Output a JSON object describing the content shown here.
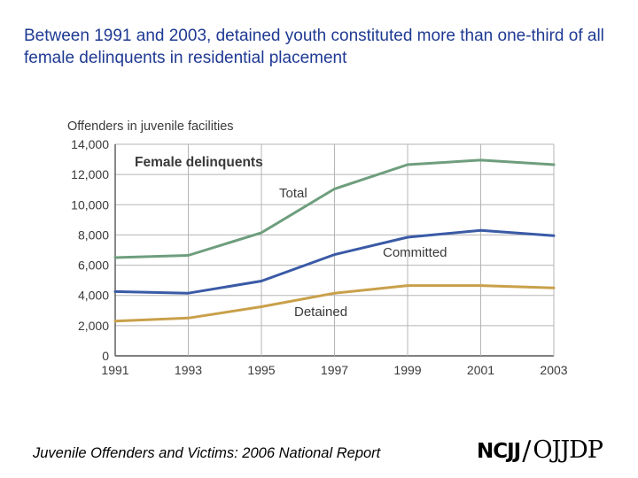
{
  "headline": "Between 1991 and 2003, detained youth constituted more than one-third of all female delinquents in residential placement",
  "footer": {
    "title": "Juvenile Offenders and Victims: 2006 National Report",
    "logo_left": "NCJJ",
    "logo_slash": "/",
    "logo_right": "OJJDP"
  },
  "chart_data": {
    "type": "line",
    "title": "Female delinquents",
    "ylabel": "Offenders in juvenile facilities",
    "x": [
      "1991",
      "1993",
      "1995",
      "1997",
      "1999",
      "2001",
      "2003"
    ],
    "yticks": [
      "0",
      "2,000",
      "4,000",
      "6,000",
      "8,000",
      "10,000",
      "12,000",
      "14,000"
    ],
    "ylim": [
      0,
      14000
    ],
    "grid": true,
    "series": [
      {
        "name": "Total",
        "values": [
          6500,
          6650,
          8150,
          11050,
          12650,
          12950,
          12650
        ],
        "color": "#6e9e7d"
      },
      {
        "name": "Committed",
        "values": [
          4250,
          4150,
          4950,
          6700,
          7850,
          8300,
          7950
        ],
        "color": "#3a5aa6"
      },
      {
        "name": "Detained",
        "values": [
          2300,
          2500,
          3250,
          4150,
          4650,
          4650,
          4500
        ],
        "color": "#c9a04a"
      }
    ]
  }
}
